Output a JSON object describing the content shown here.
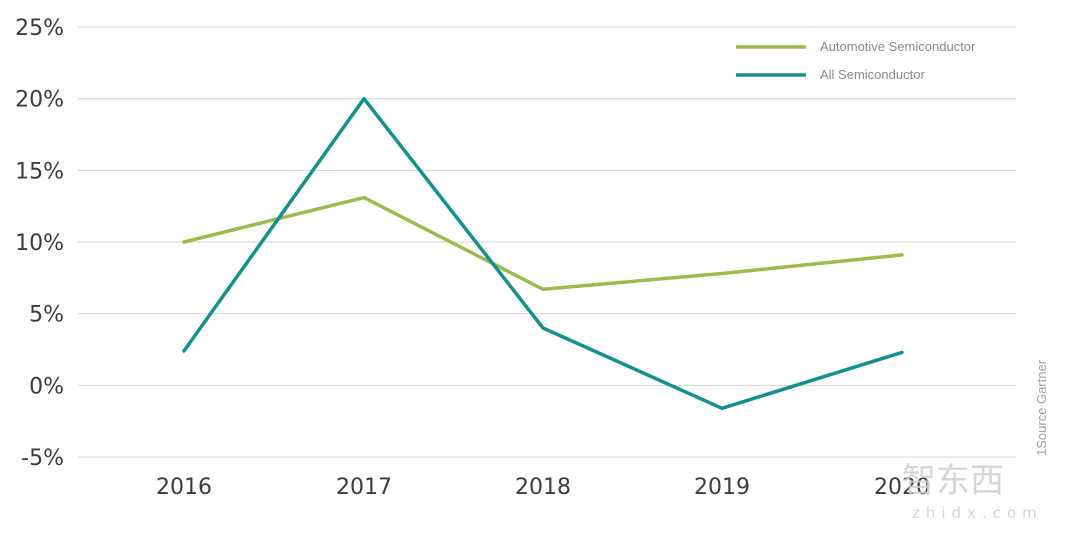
{
  "chart_data": {
    "type": "line",
    "title": "",
    "xlabel": "",
    "ylabel": "",
    "x": [
      "2016",
      "2017",
      "2018",
      "2019",
      "2020"
    ],
    "y_ticks": [
      "25%",
      "20%",
      "15%",
      "10%",
      "5%",
      "0%",
      "-5%"
    ],
    "ylim": [
      -5,
      25
    ],
    "grid": true,
    "legend_position": "top-right",
    "series": [
      {
        "name": "Automotive Semiconductor",
        "color": "#9cbb4d",
        "values": [
          10.0,
          13.1,
          6.7,
          7.8,
          9.1
        ]
      },
      {
        "name": "All Semiconductor",
        "color": "#13908f",
        "values": [
          2.4,
          20.0,
          4.0,
          -1.6,
          2.3
        ]
      }
    ]
  },
  "source_label": "1Source Gartner",
  "watermark": {
    "logo_text": "智东西",
    "url_text": "zhidx.com"
  }
}
